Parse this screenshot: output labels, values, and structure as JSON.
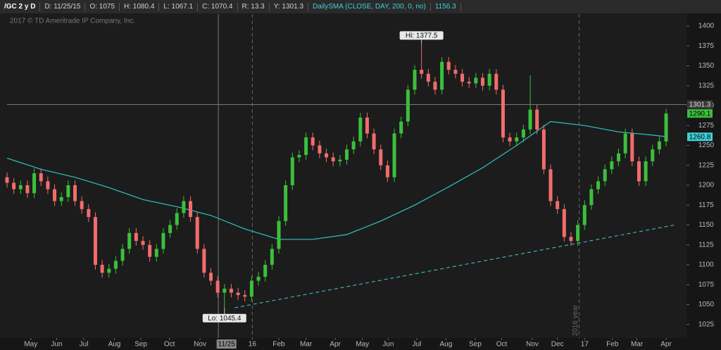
{
  "header": {
    "items": [
      {
        "text": "/GC 2 y D",
        "color": "#ffffff"
      },
      {
        "text": "D: 11/25/15",
        "color": "#d0d0d0"
      },
      {
        "text": "O: 1075",
        "color": "#d0d0d0"
      },
      {
        "text": "H: 1080.4",
        "color": "#d0d0d0"
      },
      {
        "text": "L: 1067.1",
        "color": "#d0d0d0"
      },
      {
        "text": "C: 1070.4",
        "color": "#d0d0d0"
      },
      {
        "text": "R: 13.3",
        "color": "#d0d0d0"
      },
      {
        "text": "Y: 1301.3",
        "color": "#d0d0d0"
      },
      {
        "text": "DailySMA (CLOSE, DAY, 200, 0, no)",
        "color": "#3fd0d8"
      },
      {
        "text": "1156.3",
        "color": "#3fd0d8"
      }
    ]
  },
  "copyright": "2017 © TD Ameritrade IP Company, Inc.",
  "chart_data": {
    "type": "candlestick",
    "up_color": "#3cbf3c",
    "down_color": "#f26c6c",
    "xlim": [
      0,
      100
    ],
    "ylim": [
      1008,
      1415
    ],
    "yticks": [
      1025,
      1050,
      1075,
      1100,
      1125,
      1150,
      1175,
      1200,
      1225,
      1250,
      1275,
      1300,
      1325,
      1350,
      1375,
      1400
    ],
    "xticks": [
      {
        "value": 3.5,
        "label": "May"
      },
      {
        "value": 7.3,
        "label": "Jun"
      },
      {
        "value": 11.3,
        "label": "Jul"
      },
      {
        "value": 15.8,
        "label": "Aug"
      },
      {
        "value": 19.7,
        "label": "Sep"
      },
      {
        "value": 23.9,
        "label": "Oct"
      },
      {
        "value": 28.4,
        "label": "Nov"
      },
      {
        "value": 36.1,
        "label": "16"
      },
      {
        "value": 40,
        "label": "Feb"
      },
      {
        "value": 44,
        "label": "Mar"
      },
      {
        "value": 48.3,
        "label": "Apr"
      },
      {
        "value": 52.3,
        "label": "May"
      },
      {
        "value": 56.1,
        "label": "Jun"
      },
      {
        "value": 60.3,
        "label": "Jul"
      },
      {
        "value": 64.6,
        "label": "Aug"
      },
      {
        "value": 68.9,
        "label": "Sep"
      },
      {
        "value": 72.8,
        "label": "Oct"
      },
      {
        "value": 77.3,
        "label": "Nov"
      },
      {
        "value": 81,
        "label": "Dec"
      },
      {
        "value": 85,
        "label": "17"
      },
      {
        "value": 89.1,
        "label": "Feb"
      },
      {
        "value": 92.7,
        "label": "Mar"
      },
      {
        "value": 97,
        "label": "Apr"
      }
    ],
    "crosshair_date": {
      "value": 32.3,
      "label": "11/25"
    },
    "crosshair_x": 31.1,
    "crosshair_price": 1301.3,
    "last_price": 1290.1,
    "sma_last": 1260.8,
    "year_lines": [
      36.1,
      84.2
    ],
    "year_label": "2016 year",
    "annotations": [
      {
        "text": "Hi: 1377.5",
        "x": 61,
        "value": 1377.5
      },
      {
        "text": "Lo: 1045.4",
        "x": 32,
        "value": 1045.4
      }
    ],
    "x": [
      0,
      1,
      2,
      3,
      4,
      5,
      6,
      7,
      8,
      9,
      10,
      11,
      12,
      13,
      14,
      15,
      16,
      17,
      18,
      19,
      20,
      21,
      22,
      23,
      24,
      25,
      26,
      27,
      28,
      29,
      30,
      31,
      32,
      33,
      34,
      35,
      36,
      37,
      38,
      39,
      40,
      41,
      42,
      43,
      44,
      45,
      46,
      47,
      48,
      49,
      50,
      51,
      52,
      53,
      54,
      55,
      56,
      57,
      58,
      59,
      60,
      61,
      62,
      63,
      64,
      65,
      66,
      67,
      68,
      69,
      70,
      71,
      72,
      73,
      74,
      75,
      76,
      77,
      78,
      79,
      80,
      81,
      82,
      83,
      84,
      85,
      86,
      87,
      88,
      89,
      90,
      91,
      92,
      93,
      94,
      95,
      96,
      97
    ],
    "open": [
      1210,
      1203,
      1195,
      1200,
      1190,
      1215,
      1205,
      1195,
      1180,
      1185,
      1200,
      1180,
      1170,
      1160,
      1100,
      1090,
      1095,
      1105,
      1120,
      1140,
      1130,
      1125,
      1110,
      1120,
      1140,
      1150,
      1165,
      1180,
      1160,
      1120,
      1090,
      1080,
      1065,
      1070,
      1065,
      1062,
      1060,
      1080,
      1085,
      1100,
      1120,
      1155,
      1200,
      1235,
      1238,
      1260,
      1250,
      1240,
      1235,
      1230,
      1232,
      1245,
      1255,
      1285,
      1265,
      1245,
      1225,
      1210,
      1265,
      1280,
      1320,
      1345,
      1340,
      1330,
      1320,
      1355,
      1345,
      1340,
      1330,
      1328,
      1335,
      1325,
      1340,
      1320,
      1260,
      1255,
      1260,
      1270,
      1295,
      1270,
      1220,
      1180,
      1170,
      1135,
      1130,
      1150,
      1175,
      1195,
      1205,
      1220,
      1230,
      1240,
      1265,
      1230,
      1205,
      1230,
      1245,
      1255
    ],
    "high": [
      1216,
      1209,
      1206,
      1206,
      1221,
      1221,
      1211,
      1201,
      1191,
      1206,
      1206,
      1186,
      1176,
      1166,
      1106,
      1101,
      1111,
      1126,
      1146,
      1146,
      1136,
      1131,
      1126,
      1146,
      1156,
      1171,
      1186,
      1186,
      1166,
      1126,
      1096,
      1086,
      1076,
      1076,
      1071,
      1068,
      1086,
      1091,
      1106,
      1126,
      1161,
      1206,
      1241,
      1244,
      1266,
      1266,
      1256,
      1246,
      1241,
      1238,
      1251,
      1261,
      1291,
      1291,
      1271,
      1251,
      1231,
      1271,
      1286,
      1326,
      1351,
      1377.5,
      1346,
      1336,
      1361,
      1361,
      1351,
      1346,
      1336,
      1341,
      1341,
      1346,
      1346,
      1326,
      1266,
      1266,
      1276,
      1338,
      1301,
      1276,
      1226,
      1186,
      1176,
      1141,
      1156,
      1181,
      1201,
      1211,
      1226,
      1236,
      1246,
      1271,
      1271,
      1236,
      1236,
      1251,
      1261,
      1296
    ],
    "low": [
      1197,
      1189,
      1189,
      1184,
      1184,
      1199,
      1189,
      1174,
      1174,
      1179,
      1174,
      1164,
      1154,
      1094,
      1084,
      1084,
      1089,
      1099,
      1114,
      1124,
      1119,
      1104,
      1104,
      1114,
      1134,
      1144,
      1159,
      1154,
      1114,
      1084,
      1074,
      1059,
      1045.4,
      1059,
      1056,
      1054,
      1054,
      1074,
      1079,
      1094,
      1114,
      1149,
      1194,
      1229,
      1232,
      1244,
      1234,
      1229,
      1224,
      1224,
      1226,
      1239,
      1249,
      1259,
      1239,
      1219,
      1204,
      1204,
      1259,
      1274,
      1314,
      1334,
      1324,
      1314,
      1314,
      1339,
      1334,
      1324,
      1322,
      1322,
      1319,
      1319,
      1314,
      1254,
      1249,
      1249,
      1254,
      1264,
      1264,
      1214,
      1174,
      1164,
      1129,
      1124,
      1124,
      1144,
      1169,
      1189,
      1199,
      1214,
      1224,
      1234,
      1224,
      1199,
      1199,
      1224,
      1239,
      1249
    ],
    "close": [
      1203,
      1195,
      1200,
      1190,
      1215,
      1205,
      1195,
      1180,
      1185,
      1200,
      1180,
      1170,
      1160,
      1100,
      1090,
      1095,
      1105,
      1120,
      1140,
      1130,
      1125,
      1110,
      1120,
      1140,
      1150,
      1165,
      1180,
      1160,
      1120,
      1090,
      1080,
      1065,
      1070,
      1065,
      1062,
      1060,
      1080,
      1085,
      1100,
      1120,
      1155,
      1200,
      1235,
      1238,
      1260,
      1250,
      1240,
      1235,
      1230,
      1232,
      1245,
      1255,
      1285,
      1265,
      1245,
      1225,
      1210,
      1265,
      1280,
      1320,
      1345,
      1340,
      1330,
      1320,
      1355,
      1345,
      1340,
      1330,
      1328,
      1335,
      1325,
      1340,
      1320,
      1260,
      1255,
      1260,
      1270,
      1295,
      1270,
      1220,
      1180,
      1170,
      1135,
      1130,
      1150,
      1175,
      1195,
      1205,
      1220,
      1230,
      1240,
      1265,
      1230,
      1205,
      1230,
      1245,
      1255,
      1290.1
    ],
    "sma": {
      "color": "#2ab8b8",
      "x": [
        0,
        5,
        10,
        15,
        20,
        25,
        30,
        35,
        40,
        45,
        50,
        55,
        60,
        65,
        70,
        75,
        80,
        85,
        90,
        95,
        97
      ],
      "values": [
        1234,
        1220,
        1210,
        1197,
        1182,
        1173,
        1162,
        1145,
        1132,
        1132,
        1138,
        1155,
        1175,
        1198,
        1222,
        1250,
        1280,
        1275,
        1267,
        1263,
        1261
      ]
    },
    "trendline": {
      "color": "#3fd0d8",
      "x": [
        33.5,
        98.2
      ],
      "values": [
        1046,
        1150
      ]
    }
  }
}
